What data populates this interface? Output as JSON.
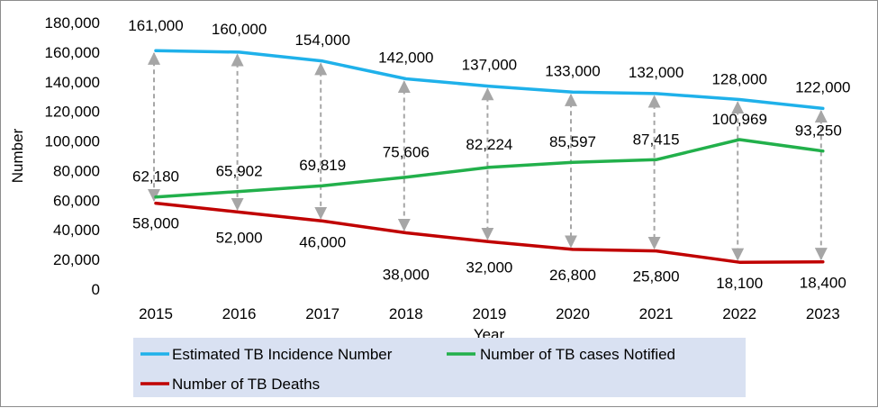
{
  "chart_data": {
    "type": "line",
    "title": "",
    "xlabel": "Year",
    "ylabel": "Number",
    "ylim": [
      0,
      180000
    ],
    "yticks": [
      0,
      20000,
      40000,
      60000,
      80000,
      100000,
      120000,
      140000,
      160000,
      180000
    ],
    "ytick_labels": [
      "0",
      "20,000",
      "40,000",
      "60,000",
      "80,000",
      "100,000",
      "120,000",
      "140,000",
      "160,000",
      "180,000"
    ],
    "categories": [
      "2015",
      "2016",
      "2017",
      "2018",
      "2019",
      "2020",
      "2021",
      "2022",
      "2023"
    ],
    "grid": false,
    "legend_position": "bottom",
    "series": [
      {
        "name": "Estimated TB Incidence Number",
        "color": "#1fb1ea",
        "values": [
          161000,
          160000,
          154000,
          142000,
          137000,
          133000,
          132000,
          128000,
          122000
        ],
        "labels": [
          "161,000",
          "160,000",
          "154,000",
          "142,000",
          "137,000",
          "133,000",
          "132,000",
          "128,000",
          "122,000"
        ]
      },
      {
        "name": "Number of TB cases Notified",
        "color": "#22b04b",
        "values": [
          62180,
          65902,
          69819,
          75606,
          82224,
          85597,
          87415,
          100969,
          93250
        ],
        "labels": [
          "62,180",
          "65,902",
          "69,819",
          "75,606",
          "82,224",
          "85,597",
          "87,415",
          "100,969",
          "93,250"
        ]
      },
      {
        "name": "Number of TB Deaths",
        "color": "#c00000",
        "values": [
          58000,
          52000,
          46000,
          38000,
          32000,
          26800,
          25800,
          18100,
          18400
        ],
        "labels": [
          "58,000",
          "52,000",
          "46,000",
          "38,000",
          "32,000",
          "26,800",
          "25,800",
          "18,100",
          "18,400"
        ]
      }
    ],
    "annotations": "dashed grey double-headed arrows between incidence and deaths at each year"
  }
}
